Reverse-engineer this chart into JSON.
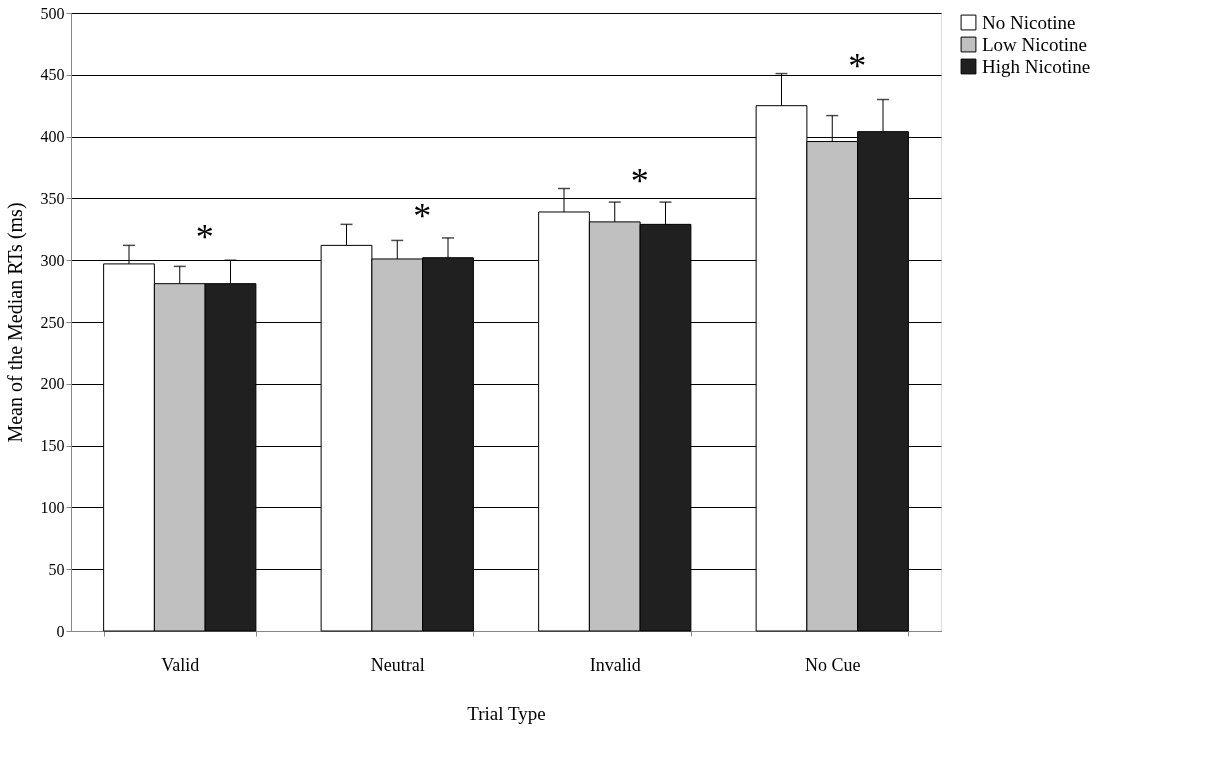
{
  "chart_data": {
    "type": "bar",
    "xlabel": "Trial Type",
    "ylabel": "Mean of the Median RTs (ms)",
    "categories": [
      "Valid",
      "Neutral",
      "Invalid",
      "No Cue"
    ],
    "series": [
      {
        "name": "No Nicotine",
        "color": "#ffffff",
        "values": [
          297,
          312,
          339,
          425
        ],
        "errors": [
          15,
          17,
          19,
          26
        ]
      },
      {
        "name": "Low Nicotine",
        "color": "#c0c0c0",
        "values": [
          281,
          301,
          331,
          396
        ],
        "errors": [
          14,
          15,
          16,
          21
        ]
      },
      {
        "name": "High Nicotine",
        "color": "#202020",
        "values": [
          281,
          302,
          329,
          404
        ],
        "errors": [
          19,
          16,
          18,
          26
        ]
      }
    ],
    "ylim": [
      0,
      500
    ],
    "yticks": [
      0,
      50,
      100,
      150,
      200,
      250,
      300,
      350,
      400,
      450,
      500
    ],
    "grid": "y",
    "legend": "right",
    "annotations": [
      "*",
      "*",
      "*",
      "*"
    ]
  }
}
